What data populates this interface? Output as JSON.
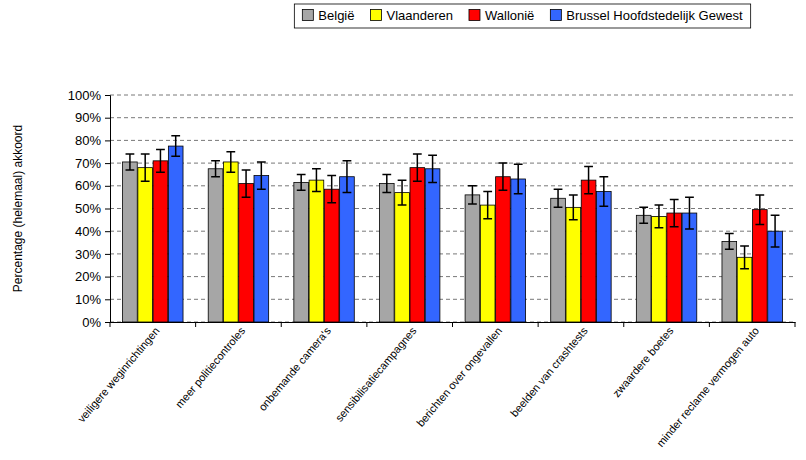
{
  "chart_data": {
    "type": "bar",
    "y_label": "Percentage (helemaal) akkoord",
    "categories": [
      "veiligere weginrichtingen",
      "meer politiecontroles",
      "onbemande camera's",
      "sensibilisatiecampagnes",
      "berichten over ongevallen",
      "beelden van crashtests",
      "zwaardere boetes",
      "minder reclame vermogen auto"
    ],
    "series": [
      {
        "name": "België",
        "color": "#a6a6a6",
        "values": [
          70.5,
          67.5,
          61.5,
          61,
          56,
          54.5,
          47,
          35.5
        ],
        "errors": [
          3.5,
          3.5,
          3.5,
          4,
          4,
          4,
          3.5,
          3.5
        ]
      },
      {
        "name": "Vlaanderen",
        "color": "#ffff00",
        "values": [
          68,
          70.5,
          62.5,
          57,
          51.5,
          50.5,
          46.5,
          28.5
        ],
        "errors": [
          6,
          4.5,
          5,
          5.5,
          6,
          5.5,
          5,
          5
        ]
      },
      {
        "name": "Wallonië",
        "color": "#ff0000",
        "values": [
          71,
          61,
          58.5,
          68,
          64,
          62.5,
          48,
          49.5
        ],
        "errors": [
          5,
          6,
          6,
          6,
          6,
          6,
          6,
          6.5
        ]
      },
      {
        "name": "Brussel Hoofdstedelijk Gewest",
        "color": "#3366ff",
        "values": [
          77.5,
          64.5,
          64,
          67.5,
          63,
          57.5,
          48,
          40
        ],
        "errors": [
          4.5,
          6,
          7,
          6,
          6.5,
          6.5,
          7,
          7
        ]
      }
    ],
    "ylim": [
      0,
      100
    ],
    "yticks": [
      {
        "value": 0,
        "label": "0%"
      },
      {
        "value": 10,
        "label": "10%"
      },
      {
        "value": 20,
        "label": "20%"
      },
      {
        "value": 30,
        "label": "30%"
      },
      {
        "value": 40,
        "label": "40%"
      },
      {
        "value": 50,
        "label": "50%"
      },
      {
        "value": 60,
        "label": "60%"
      },
      {
        "value": 70,
        "label": "70%"
      },
      {
        "value": 80,
        "label": "80%"
      },
      {
        "value": 90,
        "label": "90%"
      },
      {
        "value": 100,
        "label": "100%"
      }
    ],
    "grid": true,
    "legend": "top"
  }
}
